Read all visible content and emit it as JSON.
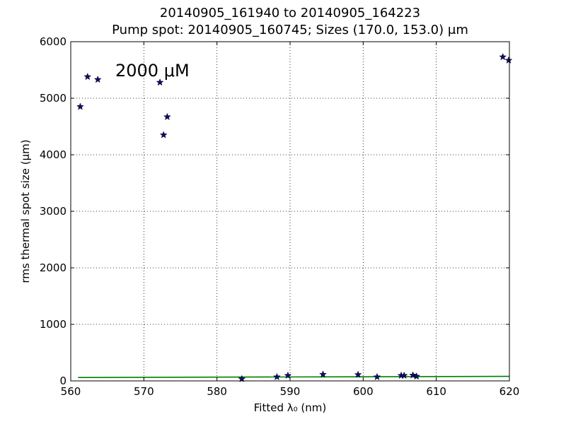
{
  "chart_data": {
    "type": "scatter",
    "title": "20140905_161940 to 20140905_164223",
    "subtitle": "Pump spot: 20140905_160745; Sizes (170.0, 153.0) μm",
    "xlabel": "Fitted λ₀ (nm)",
    "ylabel": "rms thermal spot size (μm)",
    "xlim": [
      560,
      620
    ],
    "ylim": [
      0,
      6000
    ],
    "xticks": [
      "560",
      "570",
      "580",
      "590",
      "600",
      "610",
      "620"
    ],
    "yticks": [
      "0",
      "1000",
      "2000",
      "3000",
      "4000",
      "5000",
      "6000"
    ],
    "grid": true,
    "annotation": "2000 μM",
    "series": [
      {
        "marker": "star",
        "color": "#0b0b7a",
        "x": [
          561.3,
          562.3,
          563.7,
          572.2,
          572.7,
          573.2,
          583.4,
          588.2,
          589.7,
          594.5,
          599.3,
          601.9,
          605.2,
          605.6,
          606.8,
          607.3,
          619.1,
          619.9
        ],
        "y": [
          4850,
          5380,
          5330,
          5280,
          4350,
          4670,
          35,
          70,
          95,
          115,
          110,
          70,
          95,
          95,
          100,
          80,
          5730,
          5670
        ]
      },
      {
        "type": "line",
        "color": "#007f00",
        "x": [
          561,
          620
        ],
        "y": [
          60,
          80
        ]
      }
    ]
  }
}
